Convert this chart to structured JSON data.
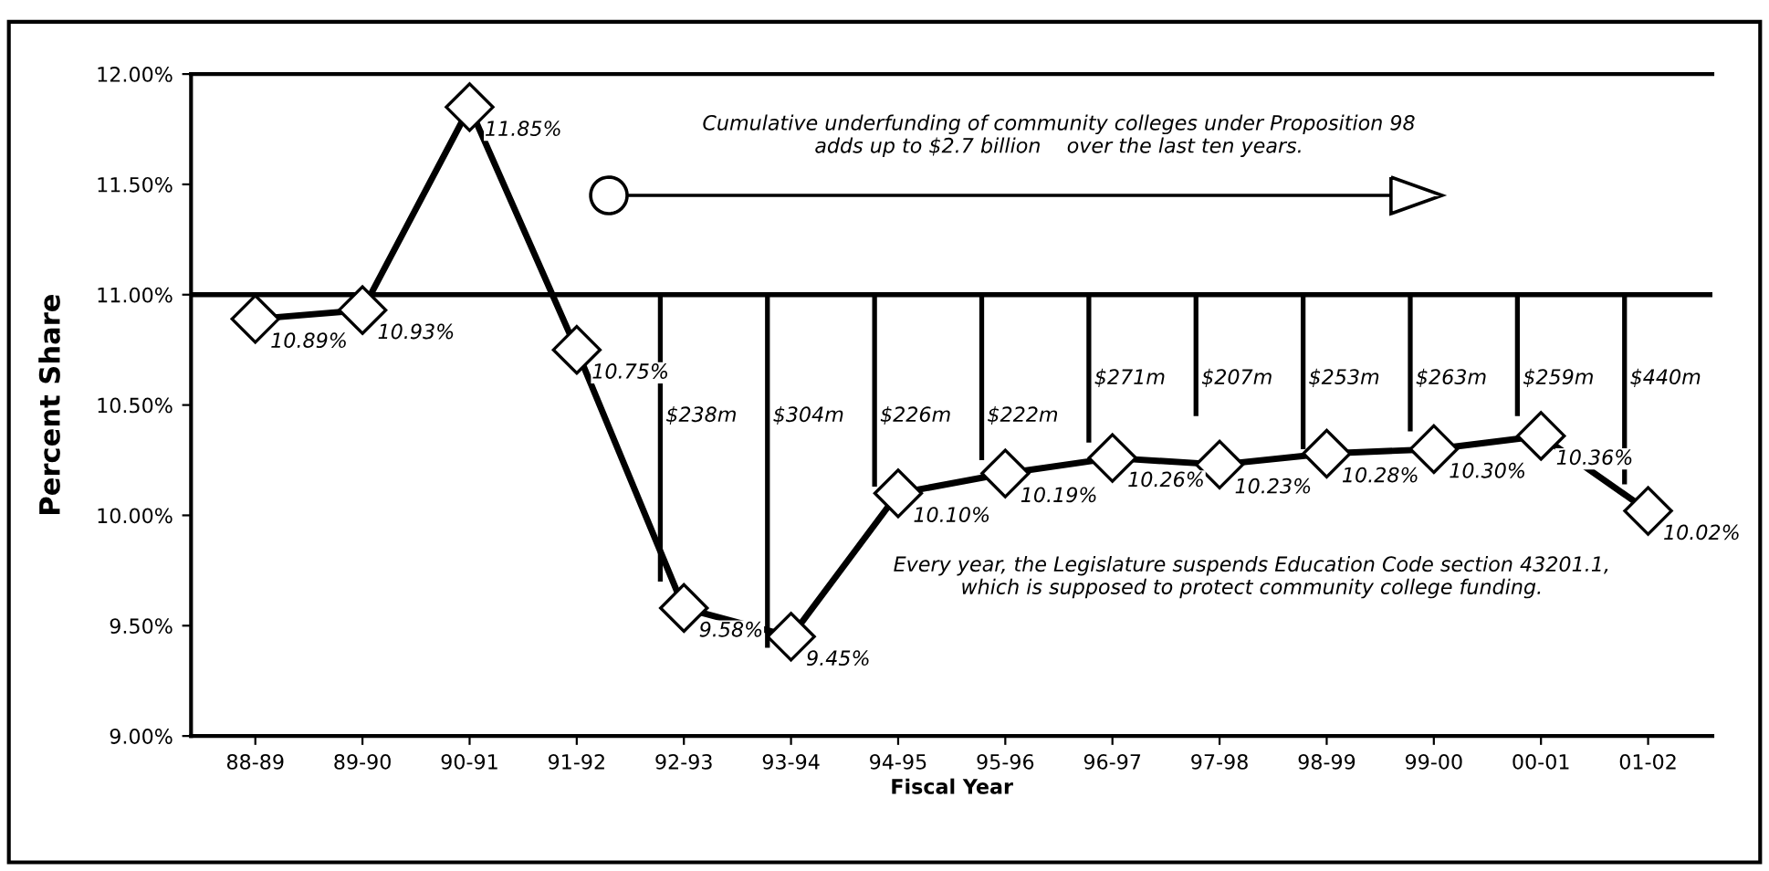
{
  "chart_data": {
    "type": "line",
    "xlabel": "Fiscal Year",
    "ylabel": "Percent Share",
    "categories": [
      "88-89",
      "89-90",
      "90-91",
      "91-92",
      "92-93",
      "93-94",
      "94-95",
      "95-96",
      "96-97",
      "97-98",
      "98-99",
      "99-00",
      "00-01",
      "01-02"
    ],
    "series": [
      {
        "color": "#000000",
        "values": [
          10.89,
          10.93,
          11.85,
          10.75,
          9.58,
          9.45,
          10.1,
          10.19,
          10.26,
          10.23,
          10.28,
          10.3,
          10.36,
          10.02
        ],
        "value_labels": [
          "10.89%",
          "10.93%",
          "11.85%",
          "10.75%",
          "9.58%",
          "9.45%",
          "10.10%",
          "10.19%",
          "10.26%",
          "10.23%",
          "10.28%",
          "10.30%",
          "10.36%",
          "10.02%"
        ]
      },
      {
        "type": "bar",
        "color": "#000000",
        "base": [
          null,
          null,
          null,
          null,
          11,
          11,
          11,
          11,
          11,
          11,
          11,
          11,
          11,
          11
        ],
        "values": [
          null,
          null,
          null,
          null,
          -1.3,
          -1.6,
          -0.87,
          -0.75,
          -0.67,
          -0.55,
          -0.7,
          -0.62,
          -0.55,
          -0.86
        ]
      }
    ],
    "ylim": [
      9,
      12
    ],
    "yticks": [
      {
        "value": 9,
        "label": "9.00%"
      },
      {
        "value": 9.5,
        "label": "9.50%"
      },
      {
        "value": 10,
        "label": "10.00%"
      },
      {
        "value": 10.5,
        "label": "10.50%"
      },
      {
        "value": 11,
        "label": "11.00%"
      },
      {
        "value": 11.5,
        "label": "11.50%"
      },
      {
        "value": 12,
        "label": "12.00%"
      }
    ],
    "marker": "diamond",
    "line_style": "solid",
    "grid": false,
    "legend": false,
    "ref_lines": [
      {
        "axis": "y",
        "value": 11,
        "color": "#000000"
      }
    ],
    "annotations": [
      "$238m",
      "$304m",
      "$226m",
      "$222m",
      "$271m",
      "$207m",
      "$253m",
      "$263m",
      "$259m",
      "$440m",
      "Cumulative underfunding of community colleges under Proposition 98\nadds up to $2.7 billion    over the last ten years.",
      "Every year, the Legislature suspends Education Code section 43201.1,\nwhich is supposed to protect community college funding."
    ]
  }
}
